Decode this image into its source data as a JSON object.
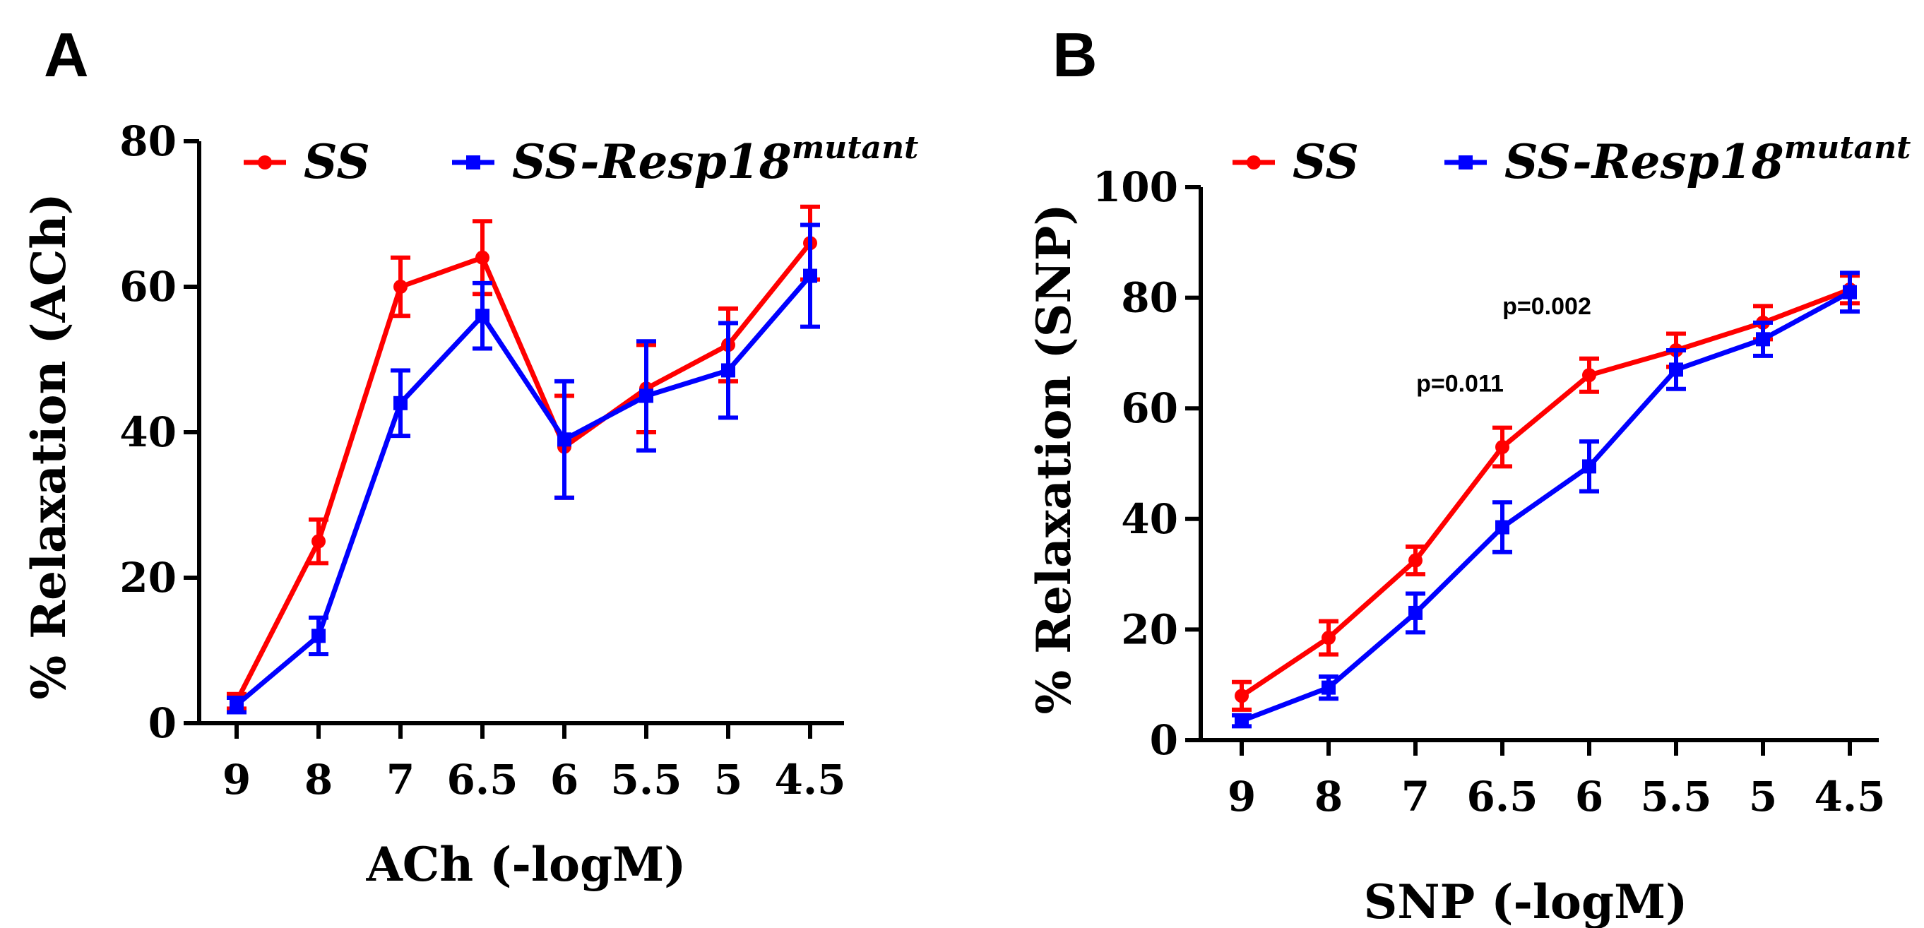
{
  "chart_data": [
    {
      "type": "line",
      "panel": "A",
      "title": "",
      "xlabel": "ACh (-logM)",
      "ylabel": "% Relaxation (ACh)",
      "categories": [
        "9",
        "8",
        "7",
        "6.5",
        "6",
        "5.5",
        "5",
        "4.5"
      ],
      "ylim": [
        0,
        80
      ],
      "yticks": [
        0,
        20,
        40,
        60,
        80
      ],
      "grid": false,
      "legend_position": "top",
      "series": [
        {
          "name": "SS",
          "color": "#ff0000",
          "marker": "circle",
          "values": [
            3,
            25,
            60,
            64,
            38,
            46,
            52,
            66
          ],
          "errors": [
            1,
            3,
            4,
            5,
            7,
            6,
            5,
            5
          ]
        },
        {
          "name": "SS-Resp18",
          "name_superscript": "mutant",
          "color": "#0000ff",
          "marker": "square",
          "values": [
            2.5,
            12,
            44,
            56,
            39,
            45,
            48.5,
            61.5
          ],
          "errors": [
            1,
            2.5,
            4.5,
            4.5,
            8,
            7.5,
            6.5,
            7
          ]
        }
      ],
      "annotations": []
    },
    {
      "type": "line",
      "panel": "B",
      "title": "",
      "xlabel": "SNP (-logM)",
      "ylabel": "% Relaxation (SNP)",
      "categories": [
        "9",
        "8",
        "7",
        "6.5",
        "6",
        "5.5",
        "5",
        "4.5"
      ],
      "ylim": [
        0,
        100
      ],
      "yticks": [
        0,
        20,
        40,
        60,
        80,
        100
      ],
      "grid": false,
      "legend_position": "top",
      "series": [
        {
          "name": "SS",
          "color": "#ff0000",
          "marker": "circle",
          "values": [
            8,
            18.5,
            32.5,
            53,
            66,
            70.5,
            75.5,
            81.5
          ],
          "errors": [
            2.5,
            3,
            2.5,
            3.5,
            3,
            3,
            3,
            2.5
          ]
        },
        {
          "name": "SS-Resp18",
          "name_superscript": "mutant",
          "color": "#0000ff",
          "marker": "square",
          "values": [
            3.5,
            9.5,
            23,
            38.5,
            49.5,
            67,
            72.5,
            81
          ],
          "errors": [
            1,
            2,
            3.5,
            4.5,
            4.5,
            3.5,
            3,
            3.5
          ]
        }
      ],
      "annotations": [
        {
          "text": "p=0.011",
          "category": "6.5",
          "y": 63
        },
        {
          "text": "p=0.002",
          "category": "6",
          "y": 77
        }
      ]
    }
  ]
}
